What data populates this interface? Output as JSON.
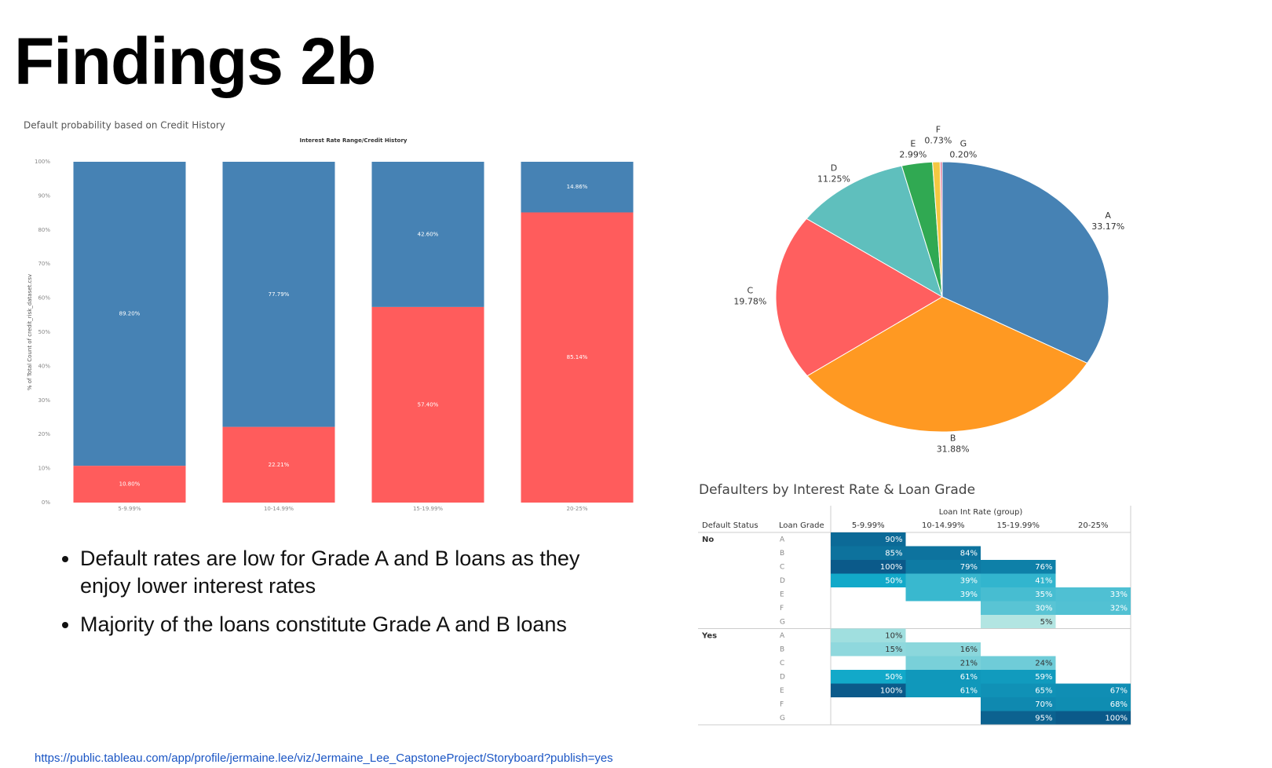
{
  "slide": {
    "title": "Findings 2b",
    "bullets": [
      "Default rates are low for Grade A and B loans as they enjoy lower interest rates",
      "Majority of the loans constitute Grade A and B loans"
    ],
    "link": "https://public.tableau.com/app/profile/jermaine.lee/viz/Jermaine_Lee_CapstoneProject/Storyboard?publish=yes"
  },
  "chart_data": [
    {
      "type": "bar",
      "stacked": true,
      "title": "Default probability based on Credit History",
      "subtitle": "Interest Rate Range/Credit History",
      "ylabel": "% of Total Count of credit_risk_dataset.csv",
      "categories": [
        "5-9.99%",
        "10-14.99%",
        "15-19.99%",
        "20-25%"
      ],
      "series": [
        {
          "color": "#ff5c5c",
          "values": [
            10.8,
            22.21,
            57.4,
            85.14
          ],
          "value_labels": [
            "10.80%",
            "22.21%",
            "57.40%",
            "85.14%"
          ]
        },
        {
          "color": "#4682b4",
          "values": [
            89.2,
            77.79,
            42.6,
            14.86
          ],
          "value_labels": [
            "89.20%",
            "77.79%",
            "42.60%",
            "14.86%"
          ]
        }
      ],
      "ylim": [
        0,
        100
      ],
      "yticks": [
        {
          "value": 0,
          "label": "0%"
        },
        {
          "value": 10,
          "label": "10%"
        },
        {
          "value": 20,
          "label": "20%"
        },
        {
          "value": 30,
          "label": "30%"
        },
        {
          "value": 40,
          "label": "40%"
        },
        {
          "value": 50,
          "label": "50%"
        },
        {
          "value": 60,
          "label": "60%"
        },
        {
          "value": 70,
          "label": "70%"
        },
        {
          "value": 80,
          "label": "80%"
        },
        {
          "value": 90,
          "label": "90%"
        },
        {
          "value": 100,
          "label": "100%"
        }
      ],
      "grid": false
    },
    {
      "type": "pie",
      "categories": [
        "A",
        "B",
        "C",
        "D",
        "E",
        "F",
        "G"
      ],
      "values": [
        33.17,
        31.88,
        19.78,
        11.25,
        2.99,
        0.73,
        0.2
      ],
      "value_labels": [
        "33.17%",
        "31.88%",
        "19.78%",
        "11.25%",
        "2.99%",
        "0.73%",
        "0.20%"
      ],
      "colors": [
        "#4682b4",
        "#ff9922",
        "#ff5f5f",
        "#5fbfbd",
        "#30a952",
        "#f5c842",
        "#e07b9a"
      ]
    },
    {
      "type": "heatmap",
      "title": "Defaulters by Interest Rate & Loan Grade",
      "x_label": "Loan Int Rate (group)",
      "row_labels": [
        "Default Status",
        "Loan Grade"
      ],
      "categories": [
        "5-9.99%",
        "10-14.99%",
        "15-19.99%",
        "20-25%"
      ],
      "colors": [
        "#c4ece5",
        "#12a9c9",
        "#0b5a8a"
      ],
      "groups": [
        {
          "name": "No",
          "rows": [
            {
              "name": "A",
              "values": [
                90,
                null,
                null,
                null
              ],
              "value_labels": [
                "90%",
                null,
                null,
                null
              ]
            },
            {
              "name": "B",
              "values": [
                85,
                84,
                null,
                null
              ],
              "value_labels": [
                "85%",
                "84%",
                null,
                null
              ]
            },
            {
              "name": "C",
              "values": [
                100,
                79,
                76,
                null
              ],
              "value_labels": [
                "100%",
                "79%",
                "76%",
                null
              ]
            },
            {
              "name": "D",
              "values": [
                50,
                39,
                41,
                null
              ],
              "value_labels": [
                "50%",
                "39%",
                "41%",
                null
              ]
            },
            {
              "name": "E",
              "values": [
                null,
                39,
                35,
                33
              ],
              "value_labels": [
                null,
                "39%",
                "35%",
                "33%"
              ]
            },
            {
              "name": "F",
              "values": [
                null,
                null,
                30,
                32
              ],
              "value_labels": [
                null,
                null,
                "30%",
                "32%"
              ]
            },
            {
              "name": "G",
              "values": [
                null,
                null,
                5,
                null
              ],
              "value_labels": [
                null,
                null,
                "5%",
                null
              ]
            }
          ]
        },
        {
          "name": "Yes",
          "rows": [
            {
              "name": "A",
              "values": [
                10,
                null,
                null,
                null
              ],
              "value_labels": [
                "10%",
                null,
                null,
                null
              ]
            },
            {
              "name": "B",
              "values": [
                15,
                16,
                null,
                null
              ],
              "value_labels": [
                "15%",
                "16%",
                null,
                null
              ]
            },
            {
              "name": "C",
              "values": [
                null,
                21,
                24,
                null
              ],
              "value_labels": [
                null,
                "21%",
                "24%",
                null
              ]
            },
            {
              "name": "D",
              "values": [
                50,
                61,
                59,
                null
              ],
              "value_labels": [
                "50%",
                "61%",
                "59%",
                null
              ]
            },
            {
              "name": "E",
              "values": [
                100,
                61,
                65,
                67
              ],
              "value_labels": [
                "100%",
                "61%",
                "65%",
                "67%"
              ]
            },
            {
              "name": "F",
              "values": [
                null,
                null,
                70,
                68
              ],
              "value_labels": [
                null,
                null,
                "70%",
                "68%"
              ]
            },
            {
              "name": "G",
              "values": [
                null,
                null,
                95,
                100
              ],
              "value_labels": [
                null,
                null,
                "95%",
                "100%"
              ]
            }
          ]
        }
      ]
    }
  ]
}
